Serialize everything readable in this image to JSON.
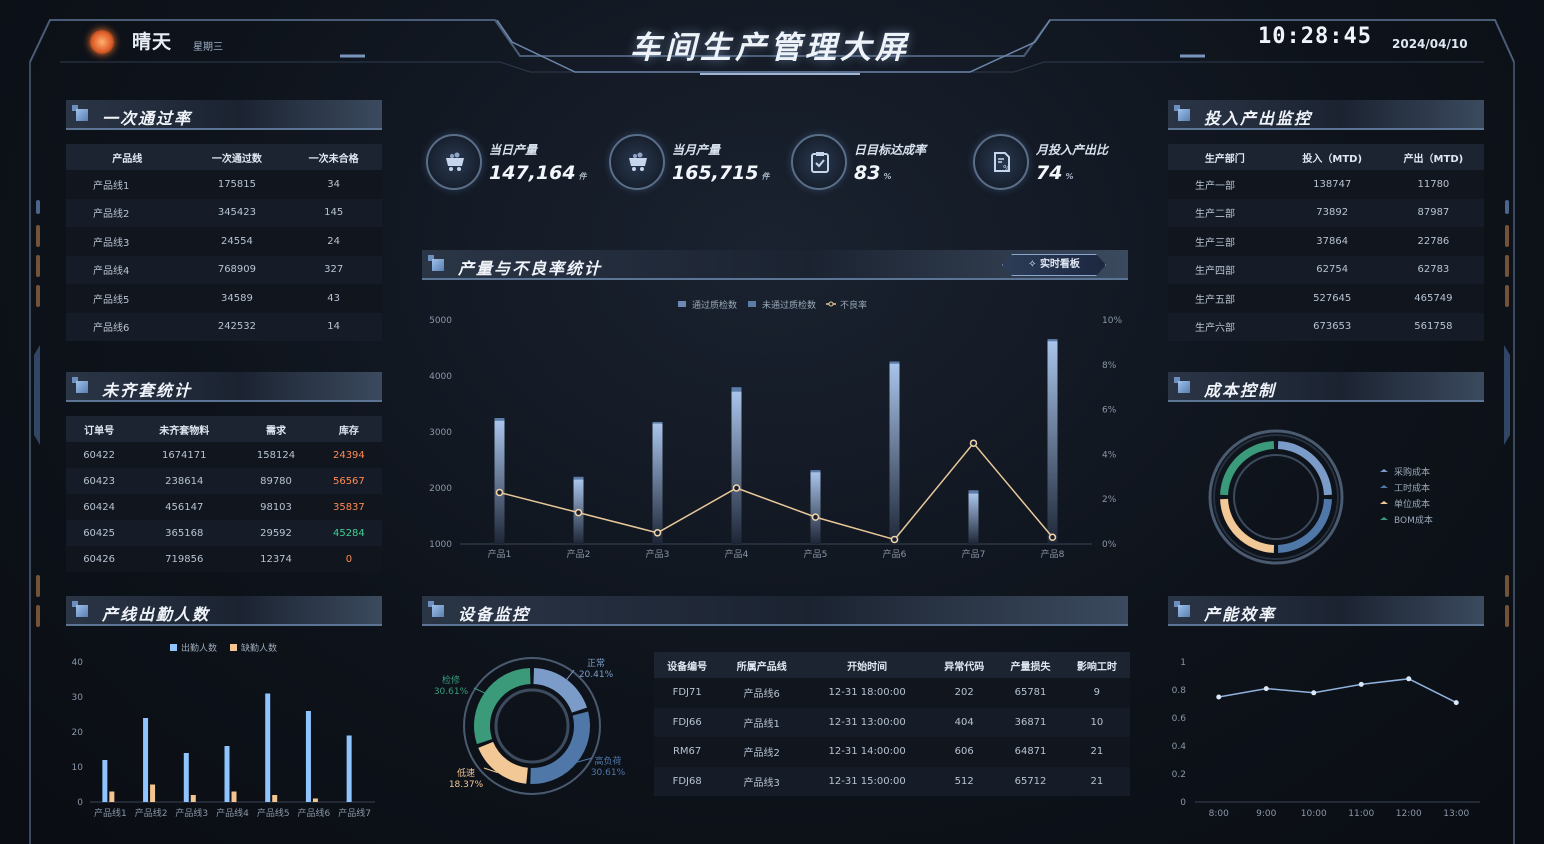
{
  "header": {
    "weather": "晴天",
    "weekday": "星期三",
    "title": "车间生产管理大屏",
    "time": "10:28:45",
    "date": "2024/04/10"
  },
  "kpis": [
    {
      "icon": "mine-cart-icon",
      "label": "当日产量",
      "value": "147,164",
      "unit": "件"
    },
    {
      "icon": "mine-cart-icon",
      "label": "当月产量",
      "value": "165,715",
      "unit": "件"
    },
    {
      "icon": "clipboard-check-icon",
      "label": "日目标达成率",
      "value": "83",
      "unit": "%"
    },
    {
      "icon": "document-percent-icon",
      "label": "月投入产出比",
      "value": "74",
      "unit": "%"
    }
  ],
  "pass_rate": {
    "title": "一次通过率",
    "columns": [
      "产品线",
      "一次通过数",
      "一次未合格"
    ],
    "rows": [
      [
        "产品线1",
        "175815",
        "34"
      ],
      [
        "产品线2",
        "345423",
        "145"
      ],
      [
        "产品线3",
        "24554",
        "24"
      ],
      [
        "产品线4",
        "768909",
        "327"
      ],
      [
        "产品线5",
        "34589",
        "43"
      ],
      [
        "产品线6",
        "242532",
        "14"
      ]
    ]
  },
  "kit_stats": {
    "title": "未齐套统计",
    "columns": [
      "订单号",
      "未齐套物料",
      "需求",
      "库存"
    ],
    "rows": [
      [
        "60422",
        "1674171",
        "158124",
        "24394"
      ],
      [
        "60423",
        "238614",
        "89780",
        "56567"
      ],
      [
        "60424",
        "456147",
        "98103",
        "35837"
      ],
      [
        "60425",
        "365168",
        "29592",
        "45284"
      ],
      [
        "60426",
        "719856",
        "12374",
        "0"
      ]
    ],
    "stock_colors": [
      "#ff8a50",
      "#ff8a50",
      "#ff8a50",
      "#3fcf8f",
      "#ff8a50"
    ]
  },
  "io_monitor": {
    "title": "投入产出监控",
    "columns": [
      "生产部门",
      "投入（MTD)",
      "产出（MTD)"
    ],
    "rows": [
      [
        "生产一部",
        "138747",
        "11780"
      ],
      [
        "生产二部",
        "73892",
        "87987"
      ],
      [
        "生产三部",
        "37864",
        "22786"
      ],
      [
        "生产四部",
        "62754",
        "62783"
      ],
      [
        "生产五部",
        "527645",
        "465749"
      ],
      [
        "生产六部",
        "673653",
        "561758"
      ]
    ]
  },
  "output_chart": {
    "title": "产量与不良率统计",
    "button": "实时看板",
    "chart_data": {
      "type": "bar",
      "categories": [
        "产品1",
        "产品2",
        "产品3",
        "产品4",
        "产品5",
        "产品6",
        "产品7",
        "产品8"
      ],
      "series": [
        {
          "name": "通过质检数",
          "type": "bar",
          "values": [
            3200,
            2150,
            3150,
            3720,
            2280,
            4220,
            1900,
            4620
          ]
        },
        {
          "name": "未通过质检数",
          "type": "bar",
          "values": [
            3250,
            2200,
            3180,
            3800,
            2320,
            4260,
            1960,
            4660
          ]
        },
        {
          "name": "不良率",
          "type": "line",
          "axis": "right",
          "values": [
            2.3,
            1.4,
            0.5,
            2.5,
            1.2,
            0.2,
            4.5,
            0.3
          ]
        }
      ],
      "y_ticks": [
        "1000",
        "2000",
        "3000",
        "4000",
        "5000"
      ],
      "y2_ticks": [
        "0%",
        "2%",
        "4%",
        "6%",
        "8%",
        "10%"
      ],
      "ylim": [
        1000,
        5000
      ],
      "y2lim": [
        0,
        10
      ]
    }
  },
  "attendance": {
    "title": "产线出勤人数",
    "chart_data": {
      "type": "bar",
      "categories": [
        "产品线1",
        "产品线2",
        "产品线3",
        "产品线4",
        "产品线5",
        "产品线6",
        "产品线7"
      ],
      "series": [
        {
          "name": "出勤人数",
          "values": [
            12,
            24,
            14,
            16,
            31,
            26,
            19
          ]
        },
        {
          "name": "缺勤人数",
          "values": [
            3,
            5,
            2,
            3,
            2,
            1,
            0
          ]
        }
      ],
      "y_ticks": [
        "0",
        "10",
        "20",
        "30",
        "40"
      ],
      "ylim": [
        0,
        40
      ]
    },
    "colors": [
      "#8ec5ff",
      "#f2c48f"
    ]
  },
  "equipment": {
    "title": "设备监控",
    "chart_data": {
      "type": "pie",
      "slices": [
        {
          "name": "正常",
          "value": 20.41,
          "label": "20.41%",
          "color": "#7b9cc8"
        },
        {
          "name": "高负荷",
          "value": 30.61,
          "label": "30.61%",
          "color": "#4f78a8"
        },
        {
          "name": "低速",
          "value": 18.37,
          "label": "18.37%",
          "color": "#f2c896"
        },
        {
          "name": "检修",
          "value": 30.61,
          "label": "30.61%",
          "color": "#3a9a7a"
        }
      ]
    },
    "columns": [
      "设备编号",
      "所属产品线",
      "开始时间",
      "异常代码",
      "产量损失",
      "影响工时"
    ],
    "rows": [
      [
        "FDJ71",
        "产品线6",
        "12-31 18:00:00",
        "202",
        "65781",
        "9"
      ],
      [
        "FDJ66",
        "产品线1",
        "12-31 13:00:00",
        "404",
        "36871",
        "10"
      ],
      [
        "RM67",
        "产品线2",
        "12-31 14:00:00",
        "606",
        "64871",
        "21"
      ],
      [
        "FDJ68",
        "产品线3",
        "12-31 15:00:00",
        "512",
        "65712",
        "21"
      ]
    ]
  },
  "cost": {
    "title": "成本控制",
    "chart_data": {
      "type": "pie",
      "slices": [
        {
          "name": "采购成本",
          "value": 25,
          "color": "#7b9cc8"
        },
        {
          "name": "工时成本",
          "value": 25,
          "color": "#4f78a8"
        },
        {
          "name": "单位成本",
          "value": 25,
          "color": "#f2c896"
        },
        {
          "name": "BOM成本",
          "value": 25,
          "color": "#3a9a7a"
        }
      ]
    }
  },
  "efficiency": {
    "title": "产能效率",
    "chart_data": {
      "type": "line",
      "x": [
        "8:00",
        "9:00",
        "10:00",
        "11:00",
        "12:00",
        "13:00"
      ],
      "values": [
        0.75,
        0.81,
        0.78,
        0.84,
        0.88,
        0.71
      ],
      "y_ticks": [
        "0",
        "0.2",
        "0.4",
        "0.6",
        "0.8",
        "1"
      ],
      "ylim": [
        0,
        1
      ]
    }
  }
}
